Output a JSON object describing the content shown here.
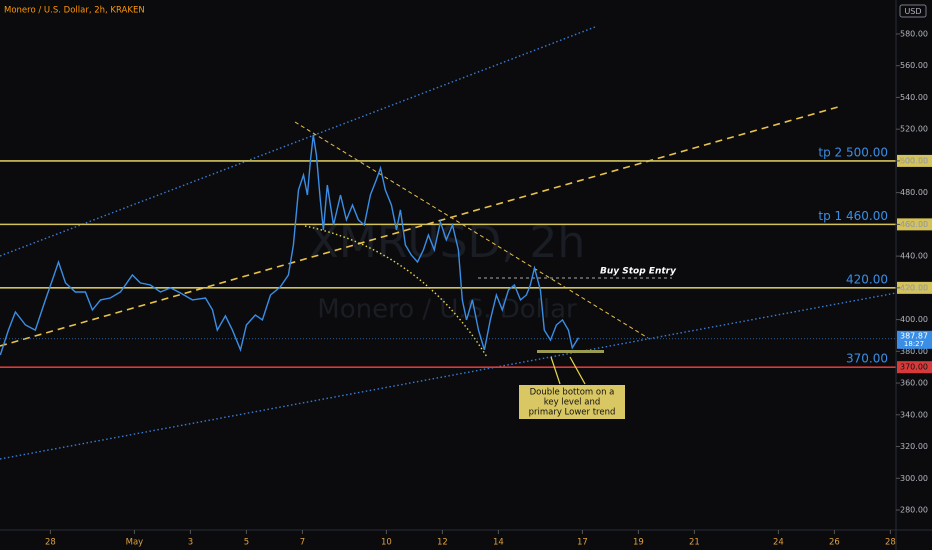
{
  "chart_data": {
    "type": "line",
    "title": "Monero / U.S. Dollar, 2h, KRAKEN",
    "watermark": [
      "XMRUSD, 2h",
      "Monero / U.S. Dollar"
    ],
    "currency": "USD",
    "color": "#3a8ee6",
    "x": [
      -1.79,
      -1.5,
      -1.25,
      -0.89,
      -0.54,
      -0.18,
      0.07,
      0.29,
      0.54,
      0.89,
      1.25,
      1.5,
      1.79,
      2.14,
      2.5,
      2.93,
      3.21,
      3.57,
      3.93,
      4.29,
      4.64,
      5.07,
      5.54,
      5.79,
      5.96,
      6.25,
      6.5,
      6.79,
      7.0,
      7.32,
      7.57,
      7.86,
      8.21,
      8.5,
      8.68,
      8.86,
      9.04,
      9.18,
      9.29,
      9.39,
      9.5,
      9.64,
      9.75,
      9.89,
      10.11,
      10.36,
      10.57,
      10.79,
      11.0,
      11.21,
      11.43,
      11.64,
      11.79,
      11.96,
      12.18,
      12.36,
      12.5,
      12.68,
      12.89,
      13.11,
      13.32,
      13.5,
      13.71,
      13.93,
      14.14,
      14.36,
      14.57,
      14.71,
      14.86,
      15.07,
      15.29,
      15.5,
      15.71,
      15.93,
      16.14,
      16.36,
      16.57,
      16.79,
      17.0,
      17.14,
      17.29,
      17.5,
      17.64,
      17.86,
      18.07,
      18.29,
      18.5,
      18.64,
      18.86
    ],
    "values": [
      377.7,
      393.4,
      404.8,
      396.6,
      393.4,
      412.4,
      425,
      436.3,
      423.1,
      417.4,
      417.4,
      406.1,
      412.4,
      413.6,
      417.4,
      428.1,
      423.1,
      421.8,
      417.4,
      420,
      416.8,
      412.4,
      413.6,
      406.1,
      393.4,
      402.3,
      393.4,
      380.9,
      396.6,
      402.9,
      399.8,
      415.5,
      420.6,
      428.1,
      447,
      481.7,
      491.1,
      478.5,
      500.6,
      516.3,
      503.7,
      475.4,
      456.5,
      484.8,
      459.6,
      478.5,
      462.8,
      472.2,
      462.8,
      459.6,
      478.5,
      488,
      495.5,
      481.7,
      472.2,
      456.5,
      469.1,
      447,
      440.7,
      436.3,
      443.9,
      453.3,
      443.9,
      461.5,
      450.2,
      459.6,
      443.9,
      412.4,
      399.8,
      412.4,
      393.4,
      380.9,
      399.8,
      415.5,
      406.1,
      418.7,
      421.8,
      412.4,
      415.5,
      421.8,
      432.5,
      418.7,
      393.4,
      387.1,
      396.6,
      399.8,
      393.4,
      382.2,
      388.5
    ],
    "xlim": [
      -1.8,
      30.2
    ],
    "xticks": [
      {
        "value": 0,
        "label": "28"
      },
      {
        "value": 3,
        "label": "May"
      },
      {
        "value": 5,
        "label": "3"
      },
      {
        "value": 7,
        "label": "5"
      },
      {
        "value": 9,
        "label": "7"
      },
      {
        "value": 12,
        "label": "10"
      },
      {
        "value": 14,
        "label": "12"
      },
      {
        "value": 16,
        "label": "14"
      },
      {
        "value": 19,
        "label": "17"
      },
      {
        "value": 21,
        "label": "19"
      },
      {
        "value": 23,
        "label": "21"
      },
      {
        "value": 26,
        "label": "24"
      },
      {
        "value": 28,
        "label": "26"
      },
      {
        "value": 30,
        "label": "28"
      }
    ],
    "ylim": [
      267.4,
      601.4
    ],
    "yticks": [
      {
        "value": 280,
        "label": "280.00"
      },
      {
        "value": 300,
        "label": "300.00"
      },
      {
        "value": 320,
        "label": "320.00"
      },
      {
        "value": 340,
        "label": "340.00"
      },
      {
        "value": 360,
        "label": "360.00"
      },
      {
        "value": 380,
        "label": "380.00"
      },
      {
        "value": 400,
        "label": "400.00"
      },
      {
        "value": 420,
        "label": "420.00"
      },
      {
        "value": 440,
        "label": "440.00"
      },
      {
        "value": 460,
        "label": "460.00"
      },
      {
        "value": 480,
        "label": "480.00"
      },
      {
        "value": 500,
        "label": "500.00"
      },
      {
        "value": 520,
        "label": "520.00"
      },
      {
        "value": 540,
        "label": "540.00"
      },
      {
        "value": 560,
        "label": "560.00"
      },
      {
        "value": 580,
        "label": "580.00"
      }
    ],
    "levels": [
      {
        "value": 500,
        "label": "tp 2 500.00",
        "tag": "500.00",
        "color": "#d4c35a"
      },
      {
        "value": 460,
        "label": "tp 1 460.00",
        "tag": "460.00",
        "color": "#d4c35a"
      },
      {
        "value": 420,
        "label": "420.00",
        "tag": "420.00",
        "color": "#d4c35a"
      },
      {
        "value": 370,
        "label": "370.00",
        "tag": "370.00",
        "color": "#d63a3a"
      }
    ],
    "last_price": {
      "value": 387.87,
      "label": "387.87",
      "countdown": "18:27"
    },
    "annotations": {
      "buy_stop": "Buy Stop Entry",
      "note": [
        "Double bottom on a",
        "key level and",
        "primary Lower trend"
      ]
    }
  }
}
